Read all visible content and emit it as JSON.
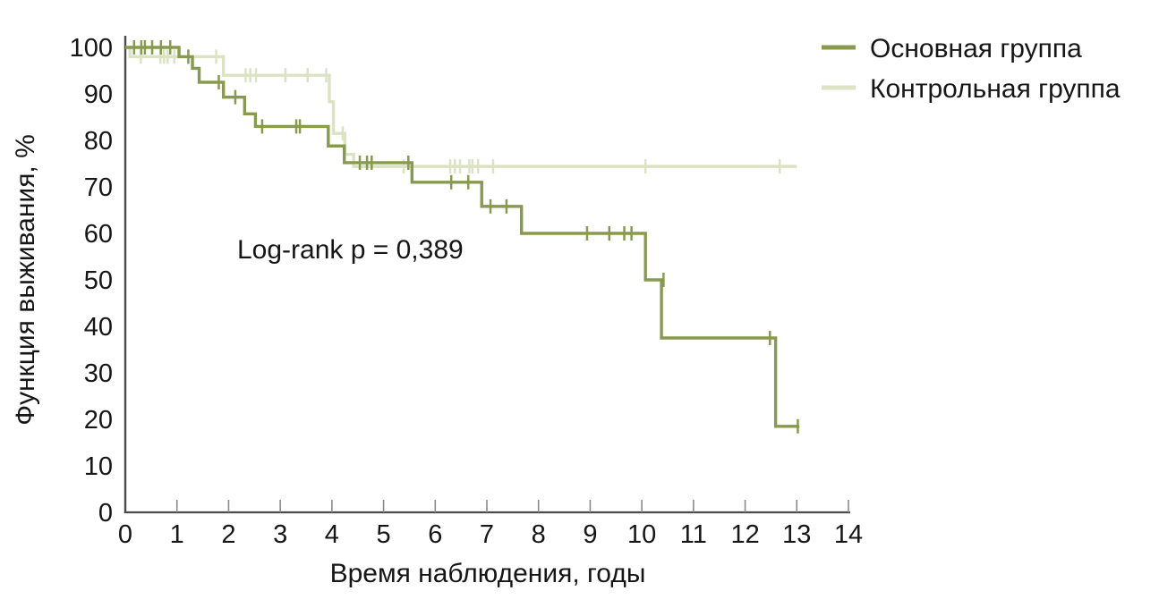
{
  "annotation": "Log-rank p = 0,389",
  "legend": [
    {
      "label": "Основная группа",
      "color": "#879a4d"
    },
    {
      "label": "Контрольная группа",
      "color": "#dbe3c3"
    }
  ],
  "axes_style": {
    "axis_color": "#4a4a4a",
    "tick_color": "#8a8a8a"
  },
  "chart_data": {
    "type": "line",
    "subtype": "kaplan-meier-step",
    "title": "",
    "xlabel": "Время наблюдения, годы",
    "ylabel": "Функция выживания, %",
    "xlim": [
      0,
      14
    ],
    "ylim": [
      0,
      100
    ],
    "x_ticks": [
      0,
      1,
      2,
      3,
      4,
      5,
      6,
      7,
      8,
      9,
      10,
      11,
      12,
      13,
      14
    ],
    "y_ticks": [
      0,
      10,
      20,
      30,
      40,
      50,
      60,
      70,
      80,
      90,
      100
    ],
    "grid": false,
    "legend_position": "top-right",
    "annotation": "Log-rank p = 0,389",
    "series": [
      {
        "id": "control-group",
        "name": "Контрольная группа",
        "color": "#dbe3c3",
        "start": [
          0,
          100
        ],
        "drops": [
          [
            0.09,
            98.0
          ],
          [
            1.9,
            94.0
          ],
          [
            3.95,
            88.3
          ],
          [
            4.03,
            81.5
          ],
          [
            4.25,
            77.0
          ],
          [
            4.42,
            74.4
          ]
        ],
        "end_x": 13.0,
        "censors": [
          [
            0.3,
            98.0
          ],
          [
            0.68,
            98.0
          ],
          [
            0.75,
            98.0
          ],
          [
            0.82,
            98.0
          ],
          [
            0.95,
            98.0
          ],
          [
            1.76,
            98.0
          ],
          [
            2.33,
            94.0
          ],
          [
            2.42,
            94.0
          ],
          [
            2.53,
            94.0
          ],
          [
            3.1,
            94.0
          ],
          [
            3.53,
            94.0
          ],
          [
            3.89,
            94.0
          ],
          [
            4.21,
            81.5
          ],
          [
            5.39,
            74.4
          ],
          [
            6.29,
            74.4
          ],
          [
            6.38,
            74.4
          ],
          [
            6.48,
            74.4
          ],
          [
            6.66,
            74.4
          ],
          [
            6.72,
            74.4
          ],
          [
            6.83,
            74.4
          ],
          [
            7.12,
            74.4
          ],
          [
            10.07,
            74.4
          ],
          [
            12.67,
            74.4
          ]
        ]
      },
      {
        "id": "main-group",
        "name": "Основная группа",
        "color": "#879a4d",
        "start": [
          0,
          100
        ],
        "drops": [
          [
            1.04,
            98.0
          ],
          [
            1.3,
            95.5
          ],
          [
            1.43,
            92.5
          ],
          [
            1.9,
            89.3
          ],
          [
            2.31,
            85.7
          ],
          [
            2.52,
            83.0
          ],
          [
            3.93,
            78.8
          ],
          [
            4.24,
            75.2
          ],
          [
            5.55,
            71.0
          ],
          [
            6.9,
            65.8
          ],
          [
            7.67,
            60.0
          ],
          [
            10.07,
            50.0
          ],
          [
            10.38,
            37.5
          ],
          [
            12.59,
            18.5
          ]
        ],
        "end_x": 13.05,
        "censors": [
          [
            0.17,
            100
          ],
          [
            0.31,
            100
          ],
          [
            0.38,
            100
          ],
          [
            0.52,
            100
          ],
          [
            0.69,
            100
          ],
          [
            0.87,
            100
          ],
          [
            1.22,
            98.0
          ],
          [
            1.81,
            92.5
          ],
          [
            2.13,
            89.3
          ],
          [
            2.65,
            83.0
          ],
          [
            3.31,
            83.0
          ],
          [
            3.38,
            83.0
          ],
          [
            4.54,
            75.2
          ],
          [
            4.68,
            75.2
          ],
          [
            4.77,
            75.2
          ],
          [
            5.48,
            75.2
          ],
          [
            6.31,
            71.0
          ],
          [
            6.64,
            71.0
          ],
          [
            7.07,
            65.8
          ],
          [
            7.38,
            65.8
          ],
          [
            8.94,
            60.0
          ],
          [
            9.37,
            60.0
          ],
          [
            9.66,
            60.0
          ],
          [
            9.8,
            60.0
          ],
          [
            10.42,
            50.0
          ],
          [
            12.48,
            37.5
          ],
          [
            13.02,
            18.5
          ]
        ]
      }
    ]
  }
}
